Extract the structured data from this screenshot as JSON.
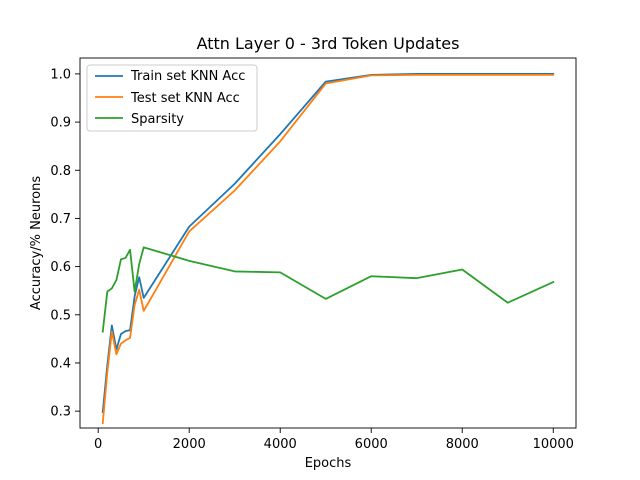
{
  "chart_data": {
    "type": "line",
    "title": "Attn Layer 0 - 3rd Token Updates",
    "xlabel": "Epochs",
    "ylabel": "Accuracy/% Neurons",
    "xlim": [
      -400,
      10500
    ],
    "ylim": [
      0.265,
      1.033
    ],
    "xticks": [
      0,
      2000,
      4000,
      6000,
      8000,
      10000
    ],
    "xtick_labels": [
      "0",
      "2000",
      "4000",
      "6000",
      "8000",
      "10000"
    ],
    "yticks": [
      0.3,
      0.4,
      0.5,
      0.6,
      0.7,
      0.8,
      0.9,
      1.0
    ],
    "ytick_labels": [
      "0.3",
      "0.4",
      "0.5",
      "0.6",
      "0.7",
      "0.8",
      "0.9",
      "1.0"
    ],
    "grid": false,
    "legend_position": "top-left",
    "series": [
      {
        "name": "Train set KNN Acc",
        "color": "#1f77b4",
        "x": [
          100,
          200,
          300,
          400,
          500,
          600,
          700,
          800,
          900,
          1000,
          2000,
          3000,
          4000,
          5000,
          6000,
          7000,
          8000,
          9000,
          10000
        ],
        "y": [
          0.298,
          0.395,
          0.478,
          0.428,
          0.46,
          0.466,
          0.468,
          0.538,
          0.578,
          0.535,
          0.683,
          0.772,
          0.875,
          0.984,
          0.998,
          1.0,
          1.0,
          1.0,
          1.0
        ]
      },
      {
        "name": "Test set KNN Acc",
        "color": "#ff7f0e",
        "x": [
          100,
          200,
          300,
          400,
          500,
          600,
          700,
          800,
          900,
          1000,
          2000,
          3000,
          4000,
          5000,
          6000,
          7000,
          8000,
          9000,
          10000
        ],
        "y": [
          0.275,
          0.38,
          0.465,
          0.418,
          0.44,
          0.447,
          0.452,
          0.52,
          0.552,
          0.508,
          0.673,
          0.758,
          0.86,
          0.98,
          0.997,
          0.998,
          0.998,
          0.998,
          0.998
        ]
      },
      {
        "name": "Sparsity",
        "color": "#2ca02c",
        "x": [
          100,
          200,
          300,
          400,
          500,
          600,
          700,
          800,
          900,
          1000,
          2000,
          3000,
          4000,
          5000,
          6000,
          7000,
          8000,
          9000,
          10000
        ],
        "y": [
          0.465,
          0.548,
          0.555,
          0.572,
          0.615,
          0.618,
          0.635,
          0.548,
          0.605,
          0.64,
          0.612,
          0.59,
          0.588,
          0.533,
          0.58,
          0.576,
          0.594,
          0.525,
          0.568
        ]
      }
    ]
  }
}
